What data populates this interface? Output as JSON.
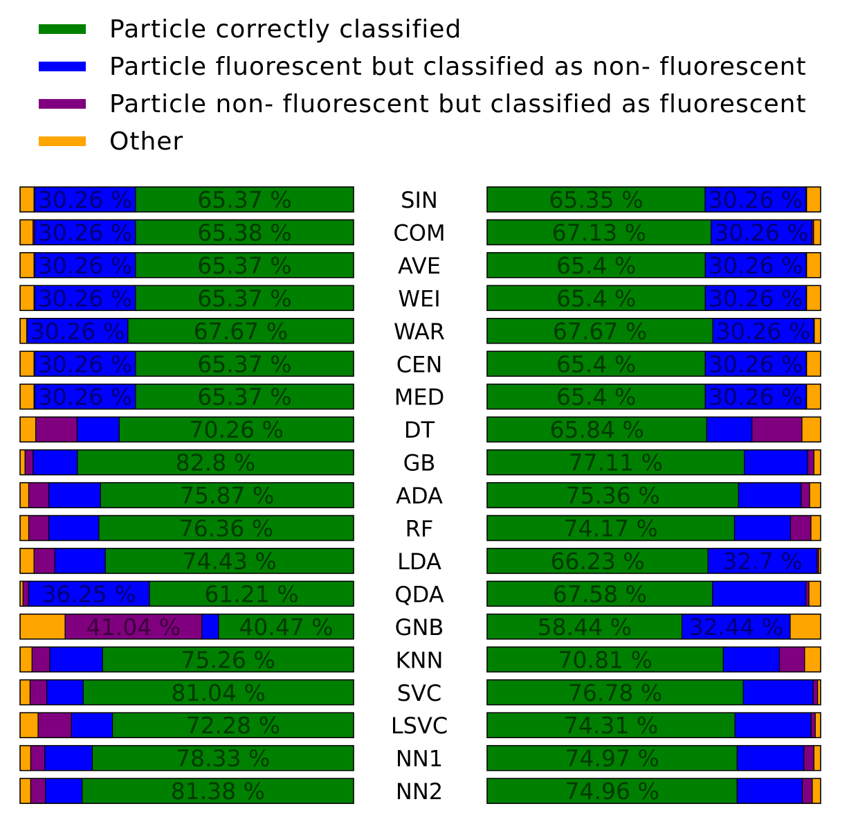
{
  "legend": {
    "items": [
      {
        "key": "correct",
        "label": "Particle correctly classified",
        "color": "#008000"
      },
      {
        "key": "fn",
        "label": "Particle fluorescent but classified as non- fluorescent",
        "color": "#0000ff"
      },
      {
        "key": "fp",
        "label": "Particle non- fluorescent but classified as fluorescent",
        "color": "#800080"
      },
      {
        "key": "other",
        "label": "Other",
        "color": "#ffa500"
      }
    ]
  },
  "chart_data": {
    "type": "bar",
    "orientation": "horizontal-stacked",
    "unit": "%",
    "categories": [
      "SIN",
      "COM",
      "AVE",
      "WEI",
      "WAR",
      "CEN",
      "MED",
      "DT",
      "GB",
      "ADA",
      "RF",
      "LDA",
      "QDA",
      "GNB",
      "KNN",
      "SVC",
      "LSVC",
      "NN1",
      "NN2"
    ],
    "left_panel": {
      "stack_order": [
        "other",
        "fp",
        "fn",
        "correct"
      ],
      "series": [
        {
          "key": "other",
          "values": [
            4.2,
            3.9,
            4.2,
            4.2,
            2.0,
            4.2,
            4.2,
            4.7,
            1.5,
            2.6,
            2.6,
            4.2,
            0.9,
            13.5,
            3.6,
            3.0,
            5.4,
            3.2,
            3.2
          ]
        },
        {
          "key": "fp",
          "values": [
            0.17,
            0.46,
            0.17,
            0.17,
            0.07,
            0.17,
            0.17,
            12.4,
            2.4,
            6.0,
            6.0,
            6.2,
            1.64,
            41.04,
            5.3,
            5.0,
            10.0,
            4.2,
            4.4
          ]
        },
        {
          "key": "fn",
          "values": [
            30.26,
            30.26,
            30.26,
            30.26,
            30.26,
            30.26,
            30.26,
            12.64,
            13.3,
            15.53,
            15.04,
            15.17,
            36.25,
            4.99,
            15.84,
            10.96,
            12.32,
            14.27,
            11.02
          ]
        },
        {
          "key": "correct",
          "values": [
            65.37,
            65.38,
            65.37,
            65.37,
            67.67,
            65.37,
            65.37,
            70.26,
            82.8,
            75.87,
            76.36,
            74.43,
            61.21,
            40.47,
            75.26,
            81.04,
            72.28,
            78.33,
            81.38
          ]
        }
      ]
    },
    "right_panel": {
      "stack_order": [
        "correct",
        "fn",
        "fp",
        "other"
      ],
      "series": [
        {
          "key": "correct",
          "values": [
            65.35,
            67.13,
            65.4,
            65.4,
            67.67,
            65.4,
            65.4,
            65.84,
            77.11,
            75.36,
            74.17,
            66.23,
            67.58,
            58.44,
            70.81,
            76.78,
            74.31,
            74.97,
            74.96
          ]
        },
        {
          "key": "fn",
          "values": [
            30.26,
            30.26,
            30.26,
            30.26,
            30.26,
            30.26,
            30.26,
            13.56,
            19.0,
            18.8,
            16.8,
            32.7,
            28.0,
            32.44,
            16.84,
            21.02,
            22.83,
            20.03,
            19.54
          ]
        },
        {
          "key": "fp",
          "values": [
            0.19,
            0.51,
            0.14,
            0.14,
            0.17,
            0.14,
            0.14,
            15.0,
            1.89,
            2.54,
            6.13,
            0.47,
            0.92,
            0.0,
            7.55,
            1.3,
            1.26,
            3.0,
            3.0
          ]
        },
        {
          "key": "other",
          "values": [
            4.2,
            2.1,
            4.2,
            4.2,
            1.9,
            4.2,
            4.2,
            5.6,
            2.0,
            3.3,
            2.9,
            0.6,
            3.5,
            9.12,
            4.8,
            0.9,
            1.6,
            2.0,
            2.5
          ]
        }
      ]
    },
    "label_threshold_percent": 30,
    "value_labels": "shown on segments of 30% or more",
    "xlim": [
      0,
      100
    ],
    "axes": false,
    "grid": false,
    "legend_position": "top-left"
  }
}
